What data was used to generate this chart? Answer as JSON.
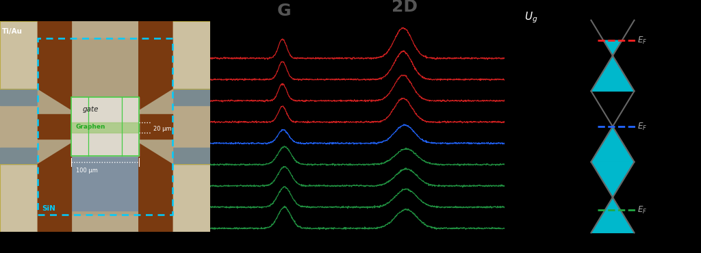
{
  "background_color": "#000000",
  "raman_colors_top": [
    "#dd2222",
    "#dd2222",
    "#dd2222",
    "#dd2222"
  ],
  "raman_color_mid": "#2266ff",
  "raman_colors_bot": [
    "#229944",
    "#229944",
    "#229944",
    "#229944"
  ],
  "G_label": "G",
  "2D_label": "2D",
  "label_color": "#555555",
  "num_spectra": 9,
  "micro_Ti_Au": "Ti/Au",
  "micro_gate": "gate",
  "micro_graphen": "Graphen",
  "micro_scale1": "20 μm",
  "micro_scale2": "100 μm",
  "micro_SiN": "SiN",
  "cone_color": "#00b8cc",
  "cone_line_color": "#666666",
  "ef_colors": [
    "#ff2222",
    "#2266ff",
    "#22aa44"
  ],
  "ef_label": "E_F",
  "Ug_label": "U_g"
}
